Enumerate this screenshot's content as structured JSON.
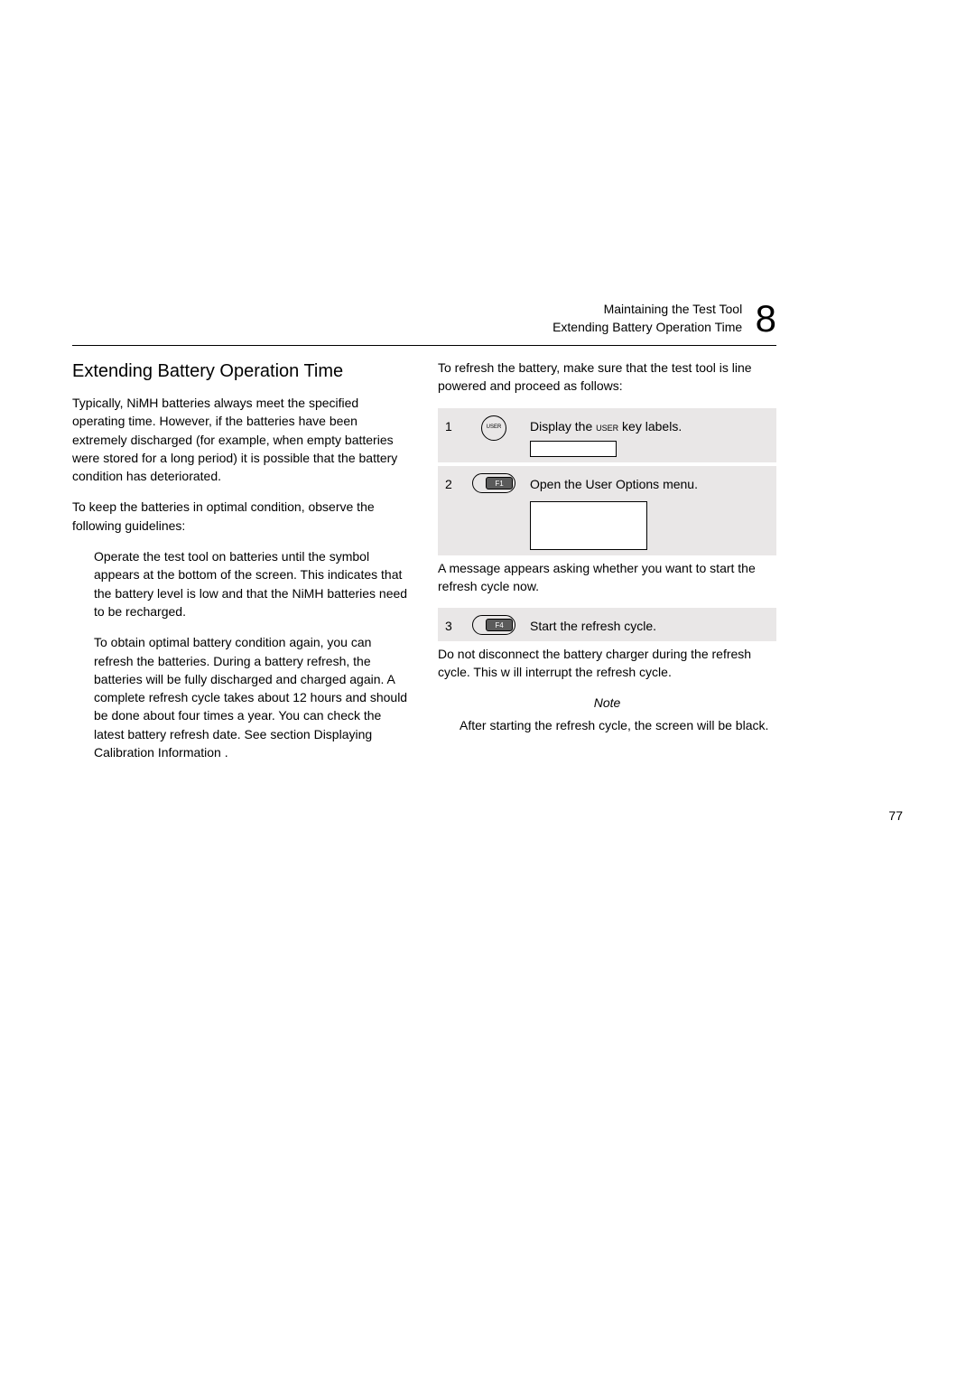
{
  "header": {
    "line1": "Maintaining the Test Tool",
    "line2": "Extending Battery Operation Time",
    "chapter": "8"
  },
  "left": {
    "title": "Extending Battery Operation Time",
    "p1": "Typically, NiMH batteries always meet the specified operating time. However, if the batteries have been extremely discharged (for example, when empty batteries were stored for a long period) it is possible that the battery condition has deteriorated.",
    "p2": "To keep the batteries in optimal condition, observe the following guidelines:",
    "b1": "Operate the test tool on batteries until the symbol appears at the bottom of the screen. This indicates that the battery level is low and that the NiMH batteries need to be recharged.",
    "b2": "To obtain optimal battery condition again, you can refresh the batteries. During a battery refresh, the batteries will be fully discharged and charged again. A complete refresh cycle takes about 12 hours and should be done about four times a year. You can check the latest battery refresh date. See section  Displaying Calibration Information ."
  },
  "right": {
    "intro": "To refresh the battery, make sure that the test tool is line powered and proceed as follows:",
    "steps": {
      "s1": {
        "num": "1",
        "key": "USER",
        "text_before": "Display the ",
        "smallcaps": "user",
        "text_after": " key labels."
      },
      "s2": {
        "num": "2",
        "key": "F1",
        "text": "Open the User Options   menu."
      },
      "s3": {
        "num": "3",
        "key": "F4",
        "text": "Start the refresh cycle."
      }
    },
    "mid": "A message appears asking whether you want to start the refresh cycle now.",
    "after": "Do not disconnect the battery charger during the refresh cycle. This w   ill interrupt the refresh     cycle.",
    "note_label": "Note",
    "note_body": "After starting the refresh cycle, the screen will be black."
  },
  "pagenum": "77",
  "colors": {
    "row_bg": "#e9e7e7",
    "text": "#000000",
    "page_bg": "#ffffff"
  }
}
